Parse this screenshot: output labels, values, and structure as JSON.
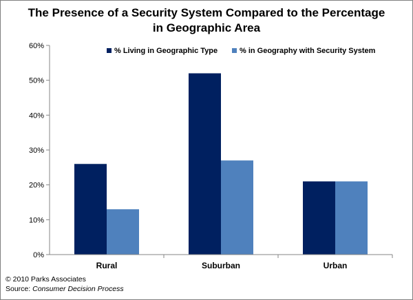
{
  "chart_data": {
    "type": "bar",
    "title_line1": "The Presence of a Security System Compared to the Percentage",
    "title_line2": "in Geographic  Area",
    "categories": [
      "Rural",
      "Suburban",
      "Urban"
    ],
    "series": [
      {
        "name": "% Living in Geographic Type",
        "values": [
          26,
          52,
          21
        ],
        "color": "#002060"
      },
      {
        "name": "% in Geography with Security System",
        "values": [
          13,
          27,
          21
        ],
        "color": "#4f81bd"
      }
    ],
    "ylim": [
      0,
      60
    ],
    "yticks": [
      "0%",
      "10%",
      "20%",
      "30%",
      "40%",
      "50%",
      "60%"
    ],
    "legend_position": "top-right",
    "grid": false
  },
  "footer": {
    "copyright": "© 2010 Parks Associates",
    "source_label": "Source: ",
    "source_name": "Consumer Decision Process"
  }
}
